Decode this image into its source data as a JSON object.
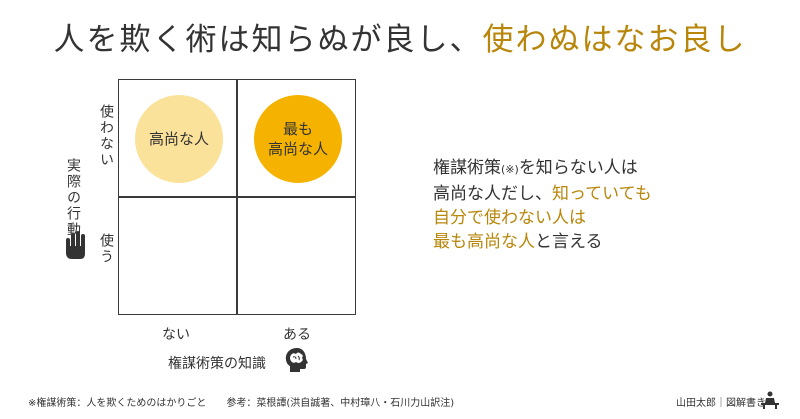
{
  "title": {
    "part1": "人を欺く術は知らぬが良し、",
    "part2": "使わぬはなお良し"
  },
  "colors": {
    "accent_text": "#B8860B",
    "bubble_light": "#FBE29A",
    "bubble_strong": "#F5B300",
    "grid_line": "#3a3a3a"
  },
  "matrix": {
    "y_axis_title": "実際の行動",
    "y_top_label": "使わない",
    "y_bottom_label": "使う",
    "x_axis_title": "権謀術策の知識",
    "x_left_label": "ない",
    "x_right_label": "ある",
    "top_left": {
      "line1": "高尚な人"
    },
    "top_right": {
      "line1": "最も",
      "line2": "高尚な人"
    },
    "icons": [
      "hand-icon",
      "brain-icon"
    ]
  },
  "description": {
    "line1_a": "権謀術策",
    "line1_note": "(※)",
    "line1_b": "を知らない人は",
    "line2_a": "高尚な人だし、",
    "line2_b": "知っていても",
    "line3": "自分で使わない人は",
    "line4_a": "最も高尚な人",
    "line4_b": "と言える"
  },
  "footer": {
    "footnote": "※権謀術策：人を欺くためのはかりごと　　参考：菜根譚(洪自誠著、中村璋八・石川力山訳注)",
    "credit": "山田太郎｜図解書き"
  }
}
